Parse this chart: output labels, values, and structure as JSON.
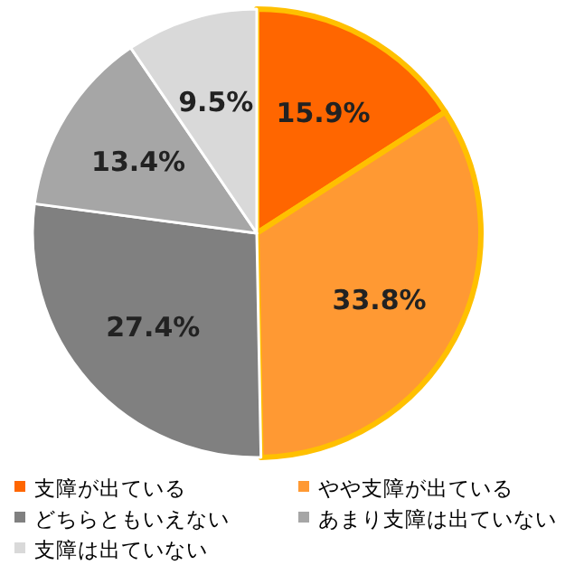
{
  "chart_data": {
    "type": "pie",
    "categories": [
      "支障が出ている",
      "やや支障が出ている",
      "どちらともいえない",
      "あまり支障は出ていない",
      "支障は出ていない"
    ],
    "values": [
      15.9,
      33.8,
      27.4,
      13.4,
      9.5
    ],
    "value_labels": [
      "15.9%",
      "33.8%",
      "27.4%",
      "13.4%",
      "9.5%"
    ],
    "colors": [
      "#ff6600",
      "#ff9933",
      "#808080",
      "#a6a6a6",
      "#d9d9d9"
    ],
    "legend": "bottom"
  }
}
